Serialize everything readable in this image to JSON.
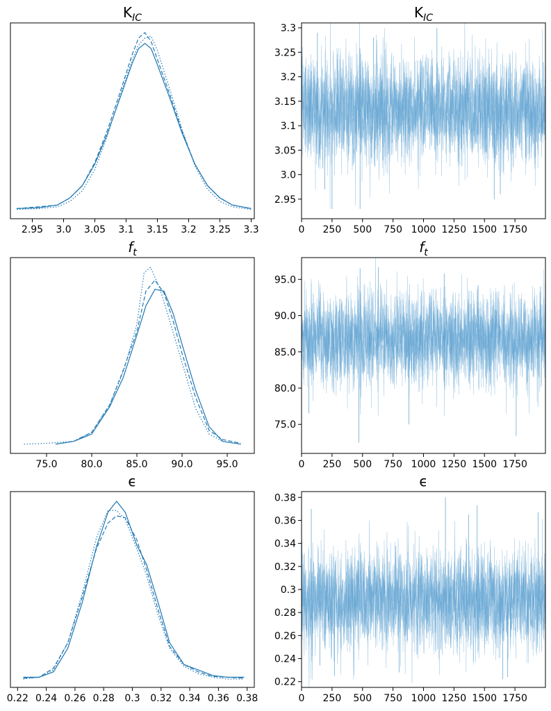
{
  "figure": {
    "color": "#1f77b4",
    "trace_color": "#5a9fd0"
  },
  "chart_data": [
    {
      "type": "line",
      "role": "density",
      "variable": "K_IC",
      "title": "K",
      "title_sub": "IC",
      "title_italic": false,
      "xlim": [
        2.915,
        3.305
      ],
      "xticks": [
        2.95,
        3.0,
        3.05,
        3.1,
        3.15,
        3.2,
        3.25,
        3.3
      ],
      "xticklabels": [
        "2.95",
        "3.0",
        "3.05",
        "3.1",
        "3.15",
        "3.2",
        "3.25",
        "3.3"
      ],
      "yticks": [],
      "yticklabels": [],
      "series": [
        {
          "style": "solid",
          "x": [
            2.925,
            2.96,
            2.99,
            3.01,
            3.03,
            3.05,
            3.07,
            3.09,
            3.11,
            3.12,
            3.13,
            3.14,
            3.15,
            3.17,
            3.19,
            3.21,
            3.23,
            3.25,
            3.27,
            3.3
          ],
          "y": [
            0.01,
            0.015,
            0.03,
            0.07,
            0.14,
            0.26,
            0.43,
            0.63,
            0.83,
            0.91,
            0.94,
            0.91,
            0.82,
            0.63,
            0.43,
            0.26,
            0.14,
            0.07,
            0.03,
            0.01
          ]
        },
        {
          "style": "dashed",
          "x": [
            2.925,
            2.96,
            2.99,
            3.01,
            3.03,
            3.05,
            3.07,
            3.09,
            3.11,
            3.12,
            3.13,
            3.14,
            3.15,
            3.17,
            3.19,
            3.21,
            3.23,
            3.25,
            3.27,
            3.3
          ],
          "y": [
            0.01,
            0.02,
            0.03,
            0.07,
            0.14,
            0.27,
            0.45,
            0.66,
            0.88,
            0.97,
            1.0,
            0.95,
            0.85,
            0.65,
            0.44,
            0.26,
            0.14,
            0.07,
            0.03,
            0.01
          ]
        },
        {
          "style": "dotted",
          "x": [
            2.925,
            2.96,
            2.99,
            3.01,
            3.03,
            3.05,
            3.07,
            3.09,
            3.11,
            3.12,
            3.13,
            3.14,
            3.15,
            3.17,
            3.19,
            3.21,
            3.23,
            3.25,
            3.27,
            3.3
          ],
          "y": [
            0.005,
            0.01,
            0.02,
            0.05,
            0.11,
            0.23,
            0.42,
            0.64,
            0.85,
            0.93,
            0.97,
            0.98,
            0.9,
            0.68,
            0.45,
            0.25,
            0.12,
            0.05,
            0.02,
            0.005
          ]
        }
      ]
    },
    {
      "type": "line",
      "role": "trace",
      "variable": "K_IC",
      "title": "K",
      "title_sub": "IC",
      "title_italic": false,
      "xlim": [
        0,
        2000
      ],
      "xticks": [
        0,
        250,
        500,
        750,
        1000,
        1250,
        1500,
        1750
      ],
      "xticklabels": [
        "0",
        "250",
        "500",
        "750",
        "1000",
        "1250",
        "1500",
        "1750"
      ],
      "ylim": [
        2.91,
        3.31
      ],
      "yticks": [
        2.95,
        3.0,
        3.05,
        3.1,
        3.15,
        3.2,
        3.25,
        3.3
      ],
      "yticklabels": [
        "2.95",
        "3.0",
        "3.05",
        "3.1",
        "3.15",
        "3.2",
        "3.25",
        "3.3"
      ],
      "mean": 3.132,
      "sd": 0.055,
      "draws": 2000,
      "chains": 3,
      "extremes": [
        [
          30,
          3.22
        ],
        [
          130,
          3.29
        ],
        [
          190,
          2.97
        ],
        [
          250,
          2.93
        ],
        [
          480,
          2.93
        ],
        [
          590,
          3.28
        ],
        [
          1110,
          3.3
        ],
        [
          1580,
          2.95
        ],
        [
          1630,
          2.96
        ]
      ]
    },
    {
      "type": "line",
      "role": "density",
      "variable": "f_t",
      "title": "f",
      "title_sub": "t",
      "title_italic": true,
      "xlim": [
        71.0,
        98.0
      ],
      "xticks": [
        75.0,
        80.0,
        85.0,
        90.0,
        95.0
      ],
      "xticklabels": [
        "75.0",
        "80.0",
        "85.0",
        "90.0",
        "95.0"
      ],
      "yticks": [],
      "yticklabels": [],
      "series": [
        {
          "style": "solid",
          "x": [
            76.0,
            78.0,
            80.0,
            82.0,
            83.5,
            85.0,
            86.0,
            87.0,
            88.0,
            89.0,
            90.0,
            91.5,
            93.0,
            94.5,
            96.5
          ],
          "y": [
            0.005,
            0.02,
            0.06,
            0.21,
            0.37,
            0.6,
            0.76,
            0.85,
            0.84,
            0.72,
            0.55,
            0.3,
            0.1,
            0.02,
            0.005
          ]
        },
        {
          "style": "dashed",
          "x": [
            76.0,
            78.0,
            80.0,
            82.0,
            83.5,
            85.0,
            86.0,
            87.0,
            88.0,
            89.0,
            90.0,
            91.5,
            93.0,
            94.5,
            96.5
          ],
          "y": [
            0.005,
            0.02,
            0.07,
            0.22,
            0.41,
            0.62,
            0.84,
            0.9,
            0.83,
            0.68,
            0.5,
            0.26,
            0.08,
            0.03,
            0.01
          ]
        },
        {
          "style": "dotted",
          "x": [
            72.5,
            75.0,
            78.0,
            80.0,
            82.0,
            83.5,
            85.0,
            85.8,
            86.5,
            87.5,
            88.5,
            90.0,
            91.5,
            93.0,
            94.5,
            96.5
          ],
          "y": [
            0.005,
            0.01,
            0.02,
            0.07,
            0.22,
            0.4,
            0.66,
            0.94,
            0.97,
            0.86,
            0.7,
            0.45,
            0.2,
            0.06,
            0.02,
            0.005
          ]
        }
      ]
    },
    {
      "type": "line",
      "role": "trace",
      "variable": "f_t",
      "title": "f",
      "title_sub": "t",
      "title_italic": true,
      "xlim": [
        0,
        2000
      ],
      "xticks": [
        0,
        250,
        500,
        750,
        1000,
        1250,
        1500,
        1750
      ],
      "xticklabels": [
        "0",
        "250",
        "500",
        "750",
        "1000",
        "1250",
        "1500",
        "1750"
      ],
      "ylim": [
        71.0,
        98.0
      ],
      "yticks": [
        75.0,
        80.0,
        85.0,
        90.0,
        95.0
      ],
      "yticklabels": [
        "75.0",
        "80.0",
        "85.0",
        "90.0",
        "95.0"
      ],
      "mean": 86.7,
      "sd": 3.3,
      "draws": 2000,
      "chains": 3,
      "extremes": [
        [
          60,
          76.5
        ],
        [
          470,
          72.5
        ],
        [
          480,
          96.5
        ],
        [
          630,
          96.7
        ],
        [
          880,
          75.0
        ],
        [
          1170,
          95.8
        ],
        [
          1760,
          73.4
        ],
        [
          1960,
          94.0
        ]
      ]
    },
    {
      "type": "line",
      "role": "density",
      "variable": "epsilon",
      "title": "ϵ",
      "title_sub": "",
      "title_italic": false,
      "xlim": [
        0.215,
        0.385
      ],
      "xticks": [
        0.22,
        0.24,
        0.26,
        0.28,
        0.3,
        0.32,
        0.34,
        0.36,
        0.38
      ],
      "xticklabels": [
        "0.22",
        "0.24",
        "0.26",
        "0.28",
        "0.3",
        "0.32",
        "0.34",
        "0.36",
        "0.38"
      ],
      "yticks": [],
      "yticklabels": [],
      "series": [
        {
          "style": "solid",
          "x": [
            0.224,
            0.235,
            0.245,
            0.255,
            0.265,
            0.275,
            0.283,
            0.289,
            0.295,
            0.303,
            0.31,
            0.318,
            0.326,
            0.336,
            0.346,
            0.356,
            0.366,
            0.378
          ],
          "y": [
            0.01,
            0.01,
            0.04,
            0.17,
            0.42,
            0.73,
            0.92,
            0.98,
            0.92,
            0.74,
            0.63,
            0.42,
            0.2,
            0.08,
            0.05,
            0.02,
            0.01,
            0.01
          ]
        },
        {
          "style": "dashed",
          "x": [
            0.224,
            0.235,
            0.245,
            0.255,
            0.265,
            0.275,
            0.283,
            0.289,
            0.295,
            0.303,
            0.31,
            0.318,
            0.326,
            0.336,
            0.346,
            0.356,
            0.366,
            0.378
          ],
          "y": [
            0.005,
            0.01,
            0.06,
            0.2,
            0.45,
            0.72,
            0.86,
            0.9,
            0.89,
            0.77,
            0.6,
            0.38,
            0.18,
            0.08,
            0.04,
            0.015,
            0.01,
            0.005
          ]
        },
        {
          "style": "dotted",
          "x": [
            0.224,
            0.235,
            0.245,
            0.255,
            0.265,
            0.275,
            0.283,
            0.289,
            0.295,
            0.303,
            0.31,
            0.318,
            0.326,
            0.336,
            0.346,
            0.356,
            0.366,
            0.378
          ],
          "y": [
            0.0,
            0.01,
            0.05,
            0.2,
            0.47,
            0.78,
            0.93,
            0.93,
            0.88,
            0.72,
            0.57,
            0.35,
            0.17,
            0.07,
            0.03,
            0.01,
            0.0,
            0.0
          ]
        }
      ]
    },
    {
      "type": "line",
      "role": "trace",
      "variable": "epsilon",
      "title": "ϵ",
      "title_sub": "",
      "title_italic": false,
      "xlim": [
        0,
        2000
      ],
      "xticks": [
        0,
        250,
        500,
        750,
        1000,
        1250,
        1500,
        1750
      ],
      "xticklabels": [
        "0",
        "250",
        "500",
        "750",
        "1000",
        "1250",
        "1500",
        "1750"
      ],
      "ylim": [
        0.215,
        0.385
      ],
      "yticks": [
        0.22,
        0.24,
        0.26,
        0.28,
        0.3,
        0.32,
        0.34,
        0.36,
        0.38
      ],
      "yticklabels": [
        "0.22",
        "0.24",
        "0.26",
        "0.28",
        "0.3",
        "0.32",
        "0.34",
        "0.36",
        "0.38"
      ],
      "mean": 0.29,
      "sd": 0.022,
      "draws": 2000,
      "chains": 3,
      "extremes": [
        [
          80,
          0.37
        ],
        [
          150,
          0.234
        ],
        [
          270,
          0.225
        ],
        [
          800,
          0.228
        ],
        [
          1180,
          0.38
        ],
        [
          1370,
          0.365
        ],
        [
          1440,
          0.373
        ],
        [
          1650,
          0.222
        ],
        [
          1690,
          0.224
        ],
        [
          1940,
          0.367
        ]
      ]
    }
  ]
}
